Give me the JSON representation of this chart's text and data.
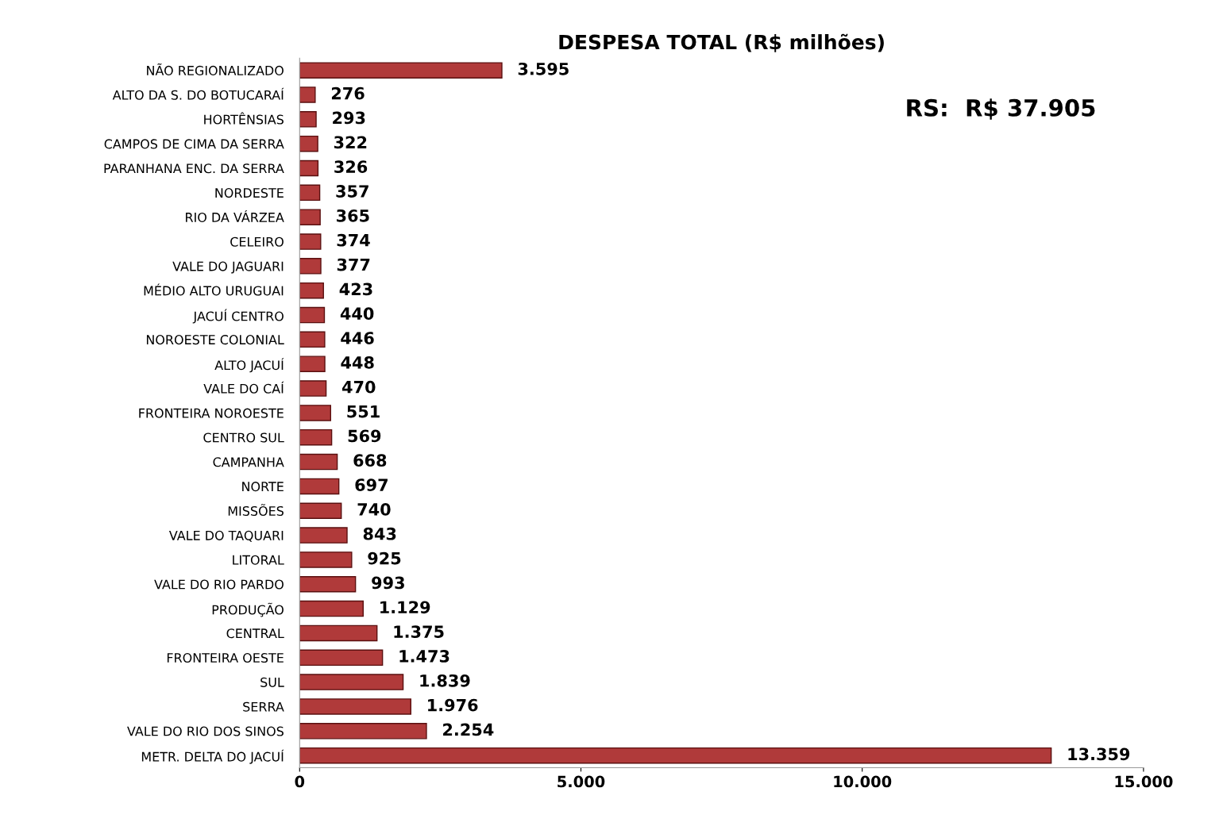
{
  "chart_data": {
    "type": "bar",
    "orientation": "horizontal",
    "title": "DESPESA TOTAL (R$ milhões)",
    "categories": [
      "NÃO REGIONALIZADO",
      "ALTO DA S. DO BOTUCARAÍ",
      "HORTÊNSIAS",
      "CAMPOS DE CIMA DA SERRA",
      "PARANHANA ENC. DA SERRA",
      "NORDESTE",
      "RIO DA VÁRZEA",
      "CELEIRO",
      "VALE DO JAGUARI",
      "MÉDIO ALTO URUGUAI",
      "JACUÍ CENTRO",
      "NOROESTE COLONIAL",
      "ALTO JACUÍ",
      "VALE DO CAÍ",
      "FRONTEIRA NOROESTE",
      "CENTRO SUL",
      "CAMPANHA",
      "NORTE",
      "MISSÕES",
      "VALE DO TAQUARI",
      "LITORAL",
      "VALE DO RIO PARDO",
      "PRODUÇÃO",
      "CENTRAL",
      "FRONTEIRA OESTE",
      "SUL",
      "SERRA",
      "VALE DO RIO DOS SINOS",
      "METR. DELTA DO JACUÍ"
    ],
    "values": [
      3595,
      276,
      293,
      322,
      326,
      357,
      365,
      374,
      377,
      423,
      440,
      446,
      448,
      470,
      551,
      569,
      668,
      697,
      740,
      843,
      925,
      993,
      1129,
      1375,
      1473,
      1839,
      1976,
      2254,
      13359
    ],
    "value_labels": [
      "3.595",
      "276",
      "293",
      "322",
      "326",
      "357",
      "365",
      "374",
      "377",
      "423",
      "440",
      "446",
      "448",
      "470",
      "551",
      "569",
      "668",
      "697",
      "740",
      "843",
      "925",
      "993",
      "1.129",
      "1.375",
      "1.473",
      "1.839",
      "1.976",
      "2.254",
      "13.359"
    ],
    "color": "#b03a3a",
    "xlim": [
      0,
      15000
    ],
    "xticks": [
      0,
      {
        "value": 5000,
        "label": "5.000"
      },
      {
        "value": 10000,
        "label": "10.000"
      },
      {
        "value": 15000,
        "label": "15.000"
      }
    ],
    "grid": false,
    "legend": false,
    "annotations": [
      "RS:  R$ 37.905"
    ]
  }
}
